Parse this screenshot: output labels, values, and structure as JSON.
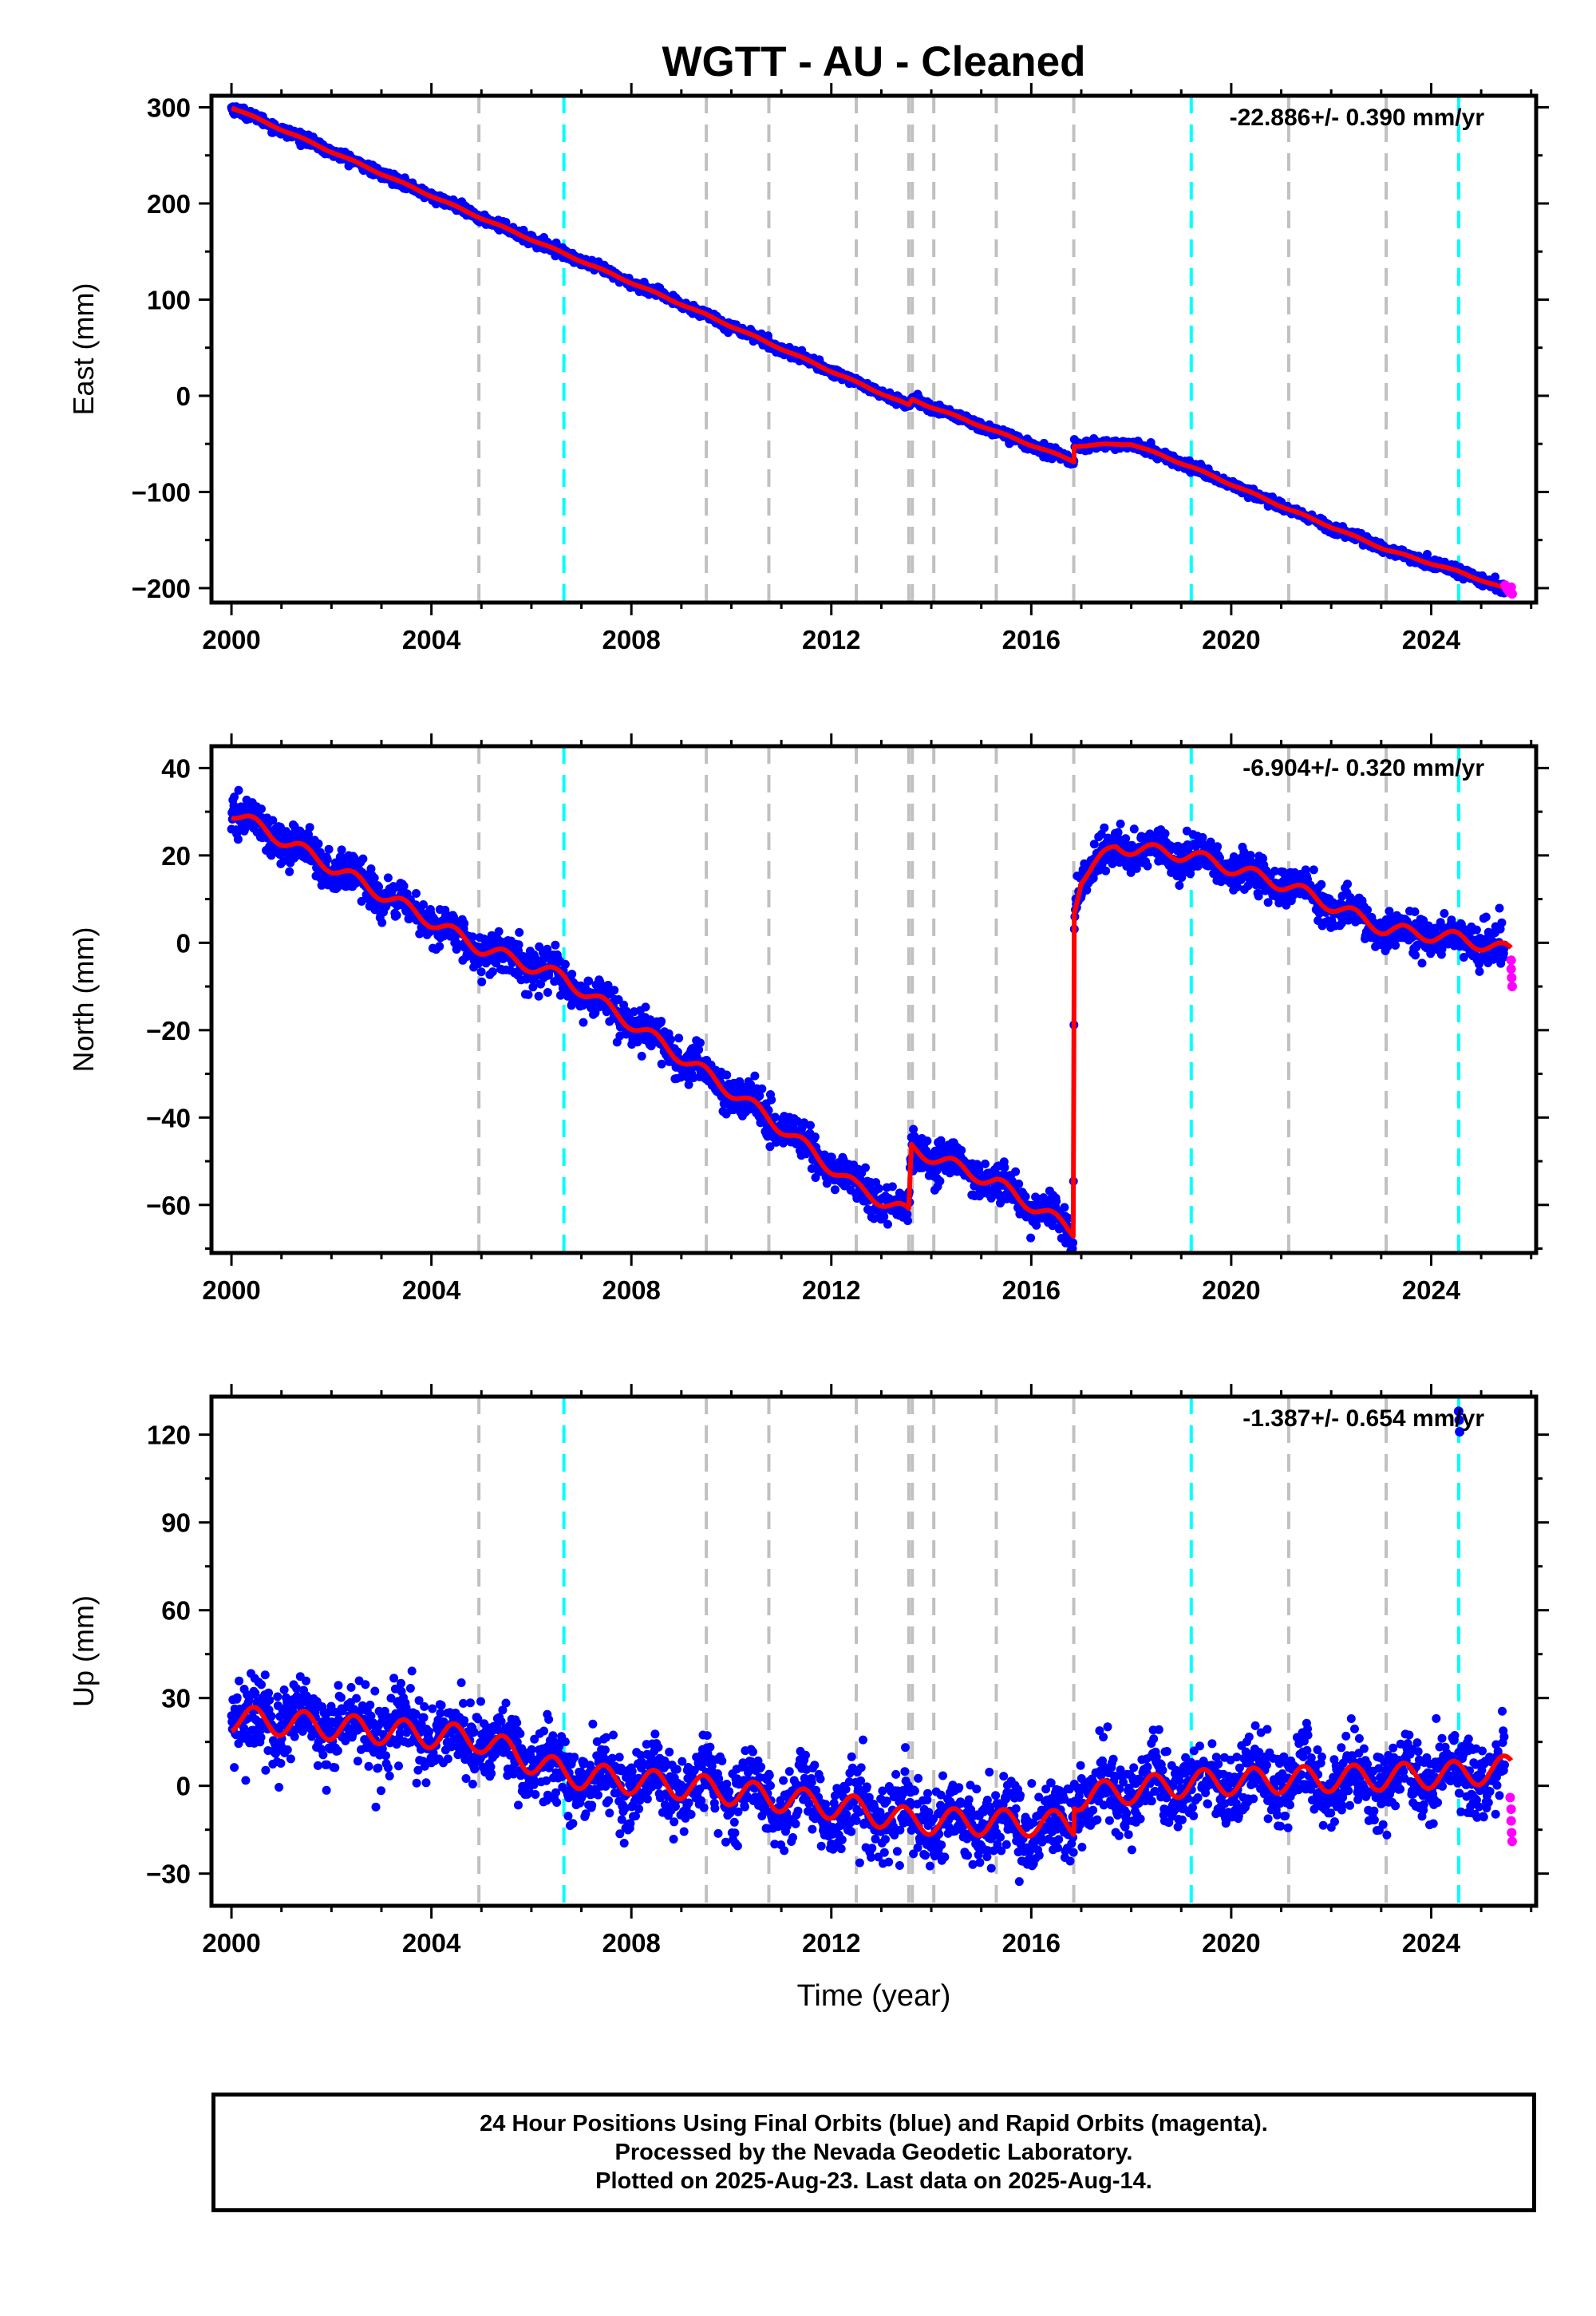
{
  "page_title": "WGTT  - AU - Cleaned",
  "footer": {
    "line1": "24 Hour Positions Using Final Orbits (blue) and Rapid Orbits (magenta).",
    "line2": "Processed by the Nevada Geodetic Laboratory.",
    "line3": "Plotted on 2025-Aug-23. Last data on 2025-Aug-14."
  },
  "colors": {
    "final_orbits": "#0000ff",
    "rapid_orbits": "#ff00ff",
    "model_fit": "#ff0000",
    "equipment_change": "#c0c0c0",
    "earthquake": "#00ffff"
  },
  "events": {
    "gray_lines": [
      2004.95,
      2009.5,
      2010.75,
      2012.5,
      2013.55,
      2013.62,
      2014.05,
      2015.3,
      2016.85,
      2021.15,
      2023.1
    ],
    "cyan_lines": [
      2006.65,
      2019.2,
      2024.55
    ]
  },
  "chart_data": [
    {
      "type": "scatter",
      "component": "east",
      "ylabel": "East (mm)",
      "xlabel": "",
      "rate_label": "-22.886+/- 0.390 mm/yr",
      "xlim": [
        1999.6,
        2026.1
      ],
      "ylim": [
        -215,
        312
      ],
      "xticks": [
        2000,
        2004,
        2008,
        2012,
        2016,
        2020,
        2024
      ],
      "yticks": [
        -200,
        -100,
        0,
        100,
        200,
        300
      ],
      "rate_mm_per_yr": -22.886,
      "noise_mm": 2.5,
      "annual_amp_mm": 0.8,
      "fit_nodes": [
        [
          2000.0,
          300
        ],
        [
          2004.95,
          186
        ],
        [
          2006.65,
          148
        ],
        [
          2009.5,
          84
        ],
        [
          2012.5,
          14
        ],
        [
          2013.55,
          -10
        ],
        [
          2013.62,
          -4
        ],
        [
          2016.85,
          -68
        ],
        [
          2016.86,
          -52
        ],
        [
          2018.0,
          -50
        ],
        [
          2019.2,
          -74
        ],
        [
          2021.15,
          -118
        ],
        [
          2023.1,
          -160
        ],
        [
          2024.55,
          -183
        ],
        [
          2025.6,
          -203
        ]
      ],
      "rapid_points": [
        [
          2025.48,
          -197
        ],
        [
          2025.52,
          -201
        ],
        [
          2025.56,
          -204
        ],
        [
          2025.6,
          -199
        ],
        [
          2025.62,
          -206
        ]
      ]
    },
    {
      "type": "scatter",
      "component": "north",
      "ylabel": "North (mm)",
      "xlabel": "",
      "rate_label": "-6.904+/- 0.320 mm/yr",
      "xlim": [
        1999.6,
        2026.1
      ],
      "ylim": [
        -71,
        45
      ],
      "xticks": [
        2000,
        2004,
        2008,
        2012,
        2016,
        2020,
        2024
      ],
      "yticks": [
        -60,
        -40,
        -20,
        0,
        20,
        40
      ],
      "rate_mm_per_yr": -6.904,
      "noise_mm": 2.2,
      "annual_amp_mm": 1.5,
      "fit_nodes": [
        [
          2000.0,
          30
        ],
        [
          2004.95,
          -1
        ],
        [
          2006.65,
          -8
        ],
        [
          2009.5,
          -30
        ],
        [
          2010.75,
          -40
        ],
        [
          2012.5,
          -56
        ],
        [
          2013.55,
          -62
        ],
        [
          2013.6,
          -47
        ],
        [
          2015.3,
          -55
        ],
        [
          2016.84,
          -66
        ],
        [
          2016.86,
          8
        ],
        [
          2017.0,
          15
        ],
        [
          2017.7,
          22
        ],
        [
          2019.2,
          20
        ],
        [
          2021.15,
          13
        ],
        [
          2023.1,
          3
        ],
        [
          2024.55,
          1
        ],
        [
          2025.6,
          -2
        ]
      ],
      "rapid_points": [
        [
          2025.6,
          -4
        ],
        [
          2025.6,
          -6
        ],
        [
          2025.61,
          -8
        ],
        [
          2025.62,
          -10
        ]
      ]
    },
    {
      "type": "scatter",
      "component": "up",
      "ylabel": "Up (mm)",
      "xlabel": "Time (year)",
      "rate_label": "-1.387+/- 0.654 mm/yr",
      "xlim": [
        1999.6,
        2026.1
      ],
      "ylim": [
        -41,
        133
      ],
      "xticks": [
        2000,
        2004,
        2008,
        2012,
        2016,
        2020,
        2024
      ],
      "yticks": [
        -30,
        0,
        30,
        60,
        90,
        120
      ],
      "rate_mm_per_yr": -1.387,
      "noise_mm": 6.5,
      "annual_amp_mm": 4.5,
      "fit_nodes": [
        [
          2000.0,
          23
        ],
        [
          2004.95,
          16
        ],
        [
          2006.65,
          4
        ],
        [
          2009.5,
          -1
        ],
        [
          2012.5,
          -8
        ],
        [
          2013.55,
          -12
        ],
        [
          2016.85,
          -13
        ],
        [
          2016.86,
          -4
        ],
        [
          2019.2,
          1
        ],
        [
          2021.15,
          2
        ],
        [
          2023.1,
          3
        ],
        [
          2024.55,
          4
        ],
        [
          2025.6,
          6
        ]
      ],
      "rapid_points": [
        [
          2025.58,
          -4
        ],
        [
          2025.6,
          -8
        ],
        [
          2025.6,
          -12
        ],
        [
          2025.61,
          -16
        ],
        [
          2025.62,
          -19
        ]
      ],
      "outliers": [
        [
          2024.55,
          128
        ],
        [
          2024.56,
          125
        ],
        [
          2024.57,
          121
        ]
      ]
    }
  ]
}
